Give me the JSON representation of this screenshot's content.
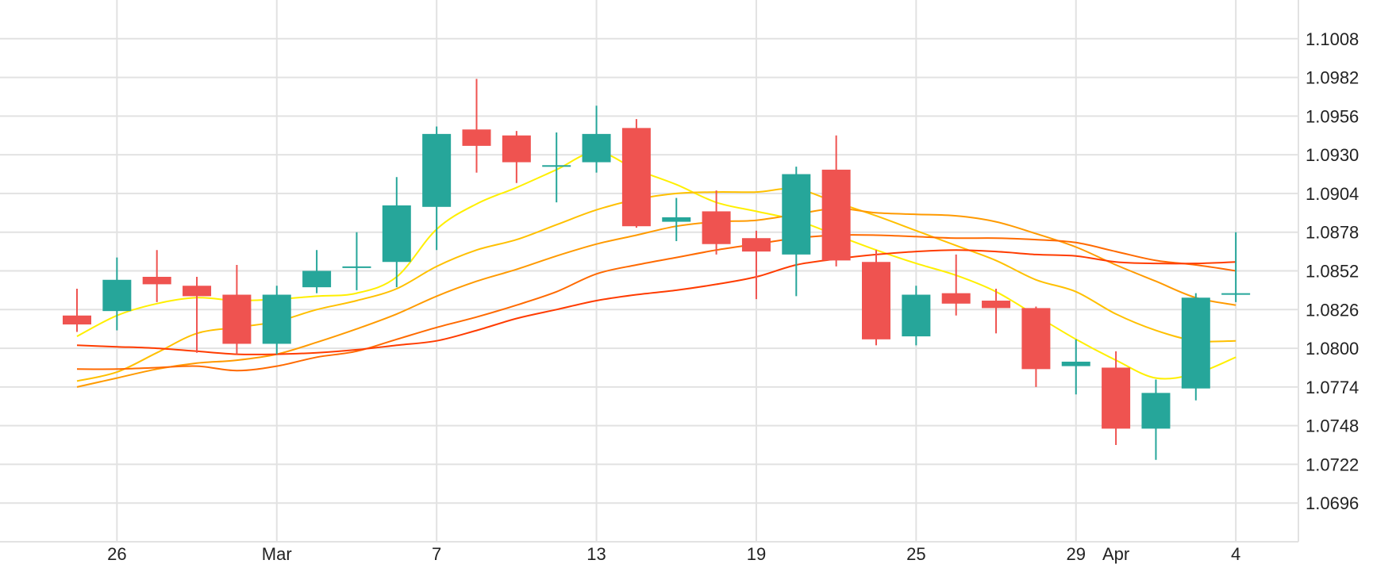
{
  "chart_data": {
    "type": "candlestick",
    "title": "",
    "xlabel": "",
    "ylabel": "",
    "ylim": [
      1.067,
      1.1034
    ],
    "grid": true,
    "y_ticks": [
      "1.1008",
      "1.0982",
      "1.0956",
      "1.0930",
      "1.0904",
      "1.0878",
      "1.0852",
      "1.0826",
      "1.0800",
      "1.0774",
      "1.0748",
      "1.0722",
      "1.0696"
    ],
    "x_ticks": [
      {
        "label": "26",
        "index": 1
      },
      {
        "label": "Mar",
        "index": 5
      },
      {
        "label": "7",
        "index": 9
      },
      {
        "label": "13",
        "index": 13
      },
      {
        "label": "19",
        "index": 17
      },
      {
        "label": "25",
        "index": 21
      },
      {
        "label": "29",
        "index": 25
      },
      {
        "label": "Apr",
        "index": 26
      },
      {
        "label": "4",
        "index": 29
      }
    ],
    "colors": {
      "up": "#26a69a",
      "down": "#ef5350",
      "grid": "#e2e2e2",
      "ma": [
        "#ffef00",
        "#ffc000",
        "#ff9a00",
        "#ff6a00",
        "#ff3c00"
      ]
    },
    "candles": [
      {
        "open": 1.0822,
        "high": 1.084,
        "low": 1.0811,
        "close": 1.0816
      },
      {
        "open": 1.0825,
        "high": 1.0861,
        "low": 1.0812,
        "close": 1.0846
      },
      {
        "open": 1.0848,
        "high": 1.0866,
        "low": 1.0831,
        "close": 1.0843
      },
      {
        "open": 1.0842,
        "high": 1.0848,
        "low": 1.0797,
        "close": 1.0835
      },
      {
        "open": 1.0836,
        "high": 1.0856,
        "low": 1.0796,
        "close": 1.0803
      },
      {
        "open": 1.0803,
        "high": 1.0842,
        "low": 1.0796,
        "close": 1.0836
      },
      {
        "open": 1.0841,
        "high": 1.0866,
        "low": 1.0837,
        "close": 1.0852
      },
      {
        "open": 1.0855,
        "high": 1.0878,
        "low": 1.0839,
        "close": 1.0855
      },
      {
        "open": 1.0858,
        "high": 1.0915,
        "low": 1.0841,
        "close": 1.0896
      },
      {
        "open": 1.0895,
        "high": 1.0949,
        "low": 1.0866,
        "close": 1.0944
      },
      {
        "open": 1.0947,
        "high": 1.0981,
        "low": 1.0918,
        "close": 1.0936
      },
      {
        "open": 1.0943,
        "high": 1.0946,
        "low": 1.0911,
        "close": 1.0925
      },
      {
        "open": 1.0923,
        "high": 1.0945,
        "low": 1.0898,
        "close": 1.0923
      },
      {
        "open": 1.0925,
        "high": 1.0963,
        "low": 1.0918,
        "close": 1.0944
      },
      {
        "open": 1.0948,
        "high": 1.0954,
        "low": 1.0881,
        "close": 1.0882
      },
      {
        "open": 1.0885,
        "high": 1.0901,
        "low": 1.0872,
        "close": 1.0888
      },
      {
        "open": 1.0892,
        "high": 1.0906,
        "low": 1.0863,
        "close": 1.087
      },
      {
        "open": 1.0874,
        "high": 1.0879,
        "low": 1.0833,
        "close": 1.0865
      },
      {
        "open": 1.0863,
        "high": 1.0922,
        "low": 1.0835,
        "close": 1.0917
      },
      {
        "open": 1.092,
        "high": 1.0943,
        "low": 1.0855,
        "close": 1.0859
      },
      {
        "open": 1.0858,
        "high": 1.0866,
        "low": 1.0802,
        "close": 1.0806
      },
      {
        "open": 1.0808,
        "high": 1.0842,
        "low": 1.0802,
        "close": 1.0836
      },
      {
        "open": 1.0837,
        "high": 1.0863,
        "low": 1.0822,
        "close": 1.083
      },
      {
        "open": 1.0832,
        "high": 1.084,
        "low": 1.081,
        "close": 1.0827
      },
      {
        "open": 1.0827,
        "high": 1.0828,
        "low": 1.0774,
        "close": 1.0786
      },
      {
        "open": 1.0788,
        "high": 1.0806,
        "low": 1.0769,
        "close": 1.0791
      },
      {
        "open": 1.0787,
        "high": 1.0798,
        "low": 1.0735,
        "close": 1.0746
      },
      {
        "open": 1.0746,
        "high": 1.0779,
        "low": 1.0725,
        "close": 1.077
      },
      {
        "open": 1.0773,
        "high": 1.0837,
        "low": 1.0765,
        "close": 1.0834
      },
      {
        "open": 1.0837,
        "high": 1.0878,
        "low": 1.0831,
        "close": 1.0837
      }
    ],
    "series": [
      {
        "values": [
          1.0808,
          1.0822,
          1.083,
          1.0834,
          1.0832,
          1.0833,
          1.0835,
          1.0837,
          1.0848,
          1.088,
          1.0897,
          1.0908,
          1.092,
          1.0932,
          1.092,
          1.091,
          1.0898,
          1.0892,
          1.0886,
          1.0876,
          1.0866,
          1.0857,
          1.0849,
          1.0838,
          1.0822,
          1.0806,
          1.0792,
          1.078,
          1.0783,
          1.0794
        ]
      },
      {
        "values": [
          1.0778,
          1.0784,
          1.0797,
          1.081,
          1.0814,
          1.0818,
          1.0826,
          1.0832,
          1.084,
          1.0855,
          1.0866,
          1.0873,
          1.0883,
          1.0893,
          1.09,
          1.0904,
          1.0905,
          1.0905,
          1.0907,
          1.0898,
          1.0889,
          1.0879,
          1.0869,
          1.0859,
          1.0846,
          1.0838,
          1.0823,
          1.0812,
          1.0805,
          1.0805
        ]
      },
      {
        "values": [
          1.0774,
          1.078,
          1.0786,
          1.079,
          1.0792,
          1.0796,
          1.0804,
          1.0813,
          1.0823,
          1.0835,
          1.0845,
          1.0853,
          1.0862,
          1.087,
          1.0876,
          1.0882,
          1.0885,
          1.0886,
          1.089,
          1.0894,
          1.0891,
          1.089,
          1.0889,
          1.0885,
          1.0877,
          1.0868,
          1.0856,
          1.0845,
          1.0834,
          1.0829
        ]
      },
      {
        "values": [
          1.0786,
          1.0786,
          1.0787,
          1.0788,
          1.0785,
          1.0788,
          1.0794,
          1.0798,
          1.0806,
          1.0814,
          1.0821,
          1.0829,
          1.0838,
          1.085,
          1.0856,
          1.0861,
          1.0866,
          1.087,
          1.0874,
          1.0876,
          1.0876,
          1.0875,
          1.0874,
          1.0874,
          1.0873,
          1.0871,
          1.0865,
          1.0859,
          1.0856,
          1.0852
        ]
      },
      {
        "values": [
          1.0802,
          1.0801,
          1.08,
          1.0798,
          1.0796,
          1.0796,
          1.0797,
          1.0799,
          1.0802,
          1.0805,
          1.0812,
          1.082,
          1.0826,
          1.0832,
          1.0836,
          1.0839,
          1.0843,
          1.0848,
          1.0856,
          1.086,
          1.0863,
          1.0865,
          1.0866,
          1.0865,
          1.0863,
          1.0862,
          1.0858,
          1.0857,
          1.0857,
          1.0858
        ]
      }
    ]
  }
}
